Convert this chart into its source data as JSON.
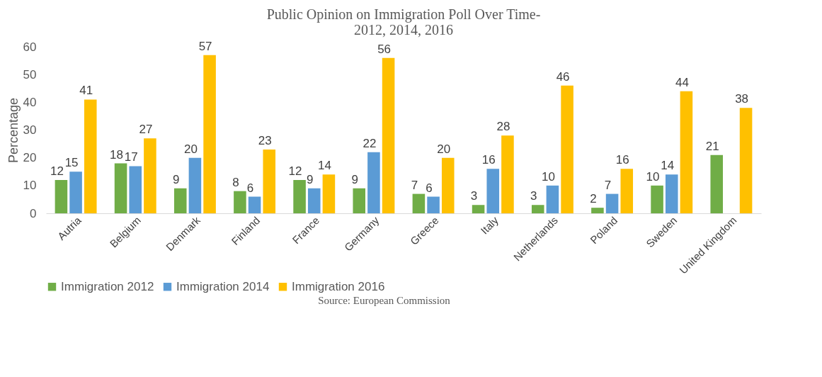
{
  "chart_data": {
    "type": "bar",
    "title": [
      "Public Opinion on Immigration Poll Over Time-",
      "2012, 2014, 2016"
    ],
    "ylabel": "Percentage",
    "categories": [
      "Autria",
      "Belgium",
      "Denmark",
      "Finland",
      "France",
      "Germany",
      "Greece",
      "Italy",
      "Netherlands",
      "Poland",
      "Sweden",
      "United Kingdom"
    ],
    "series": [
      {
        "name": "Immigration 2012",
        "color": "#70ad47",
        "values": [
          12,
          18,
          9,
          8,
          12,
          9,
          7,
          3,
          3,
          2,
          10,
          21
        ]
      },
      {
        "name": "Immigration 2014",
        "color": "#5b9bd5",
        "values": [
          15,
          17,
          20,
          6,
          9,
          22,
          6,
          16,
          10,
          7,
          14,
          null
        ]
      },
      {
        "name": "Immigration 2016",
        "color": "#ffc000",
        "values": [
          41,
          27,
          57,
          23,
          14,
          56,
          20,
          28,
          46,
          16,
          44,
          38
        ]
      }
    ],
    "ylim": [
      0,
      60
    ],
    "yticks": [
      0,
      10,
      20,
      30,
      40,
      50,
      60
    ],
    "grid": false,
    "legend": "bottom",
    "data_labels": true,
    "annotations": [
      "Source: European Commission"
    ]
  }
}
